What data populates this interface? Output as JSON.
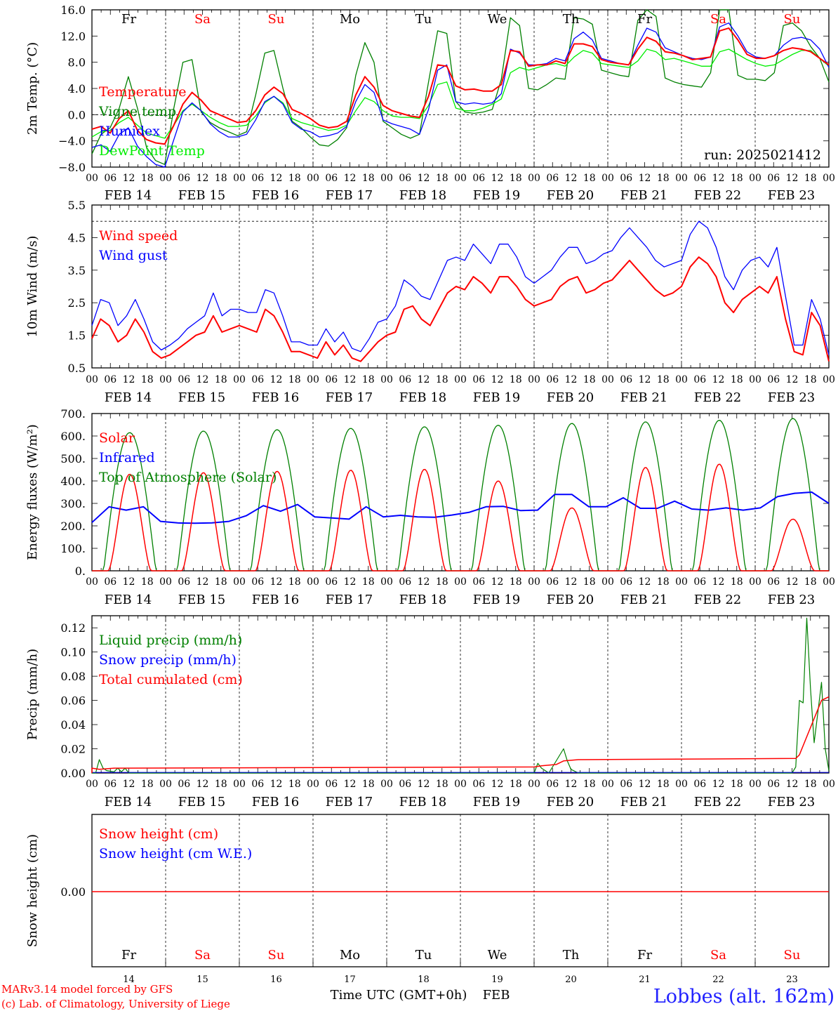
{
  "chart_data": [
    {
      "type": "line",
      "ylabel": "2m Temp. (°C)",
      "ylim": [
        -8,
        16
      ],
      "yticks": [
        "16.0",
        "12.0",
        "8.0",
        "4.0",
        "0.0",
        "−4.0",
        "−8.0"
      ],
      "ytick_values": [
        16,
        12,
        8,
        4,
        0,
        -4,
        -8
      ],
      "ref_lines": [
        0
      ],
      "annotation": "run: 2025021412",
      "series": [
        {
          "name": "Temperature",
          "color": "#ff0000",
          "values": [
            -2.2,
            -1.8,
            -2.8,
            -0.6,
            0.6,
            -2.4,
            -3.8,
            -4.3,
            -4.5,
            -1.6,
            1.6,
            3.4,
            2.2,
            0.6,
            0.0,
            -0.6,
            -1.2,
            -1.0,
            0.6,
            3.0,
            4.2,
            3.2,
            0.8,
            0.2,
            -0.6,
            -1.6,
            -2.0,
            -1.8,
            -1.0,
            3.0,
            5.8,
            4.2,
            1.4,
            0.6,
            0.2,
            -0.2,
            -0.4,
            2.8,
            7.6,
            7.4,
            4.4,
            3.8,
            3.9,
            3.6,
            3.6,
            4.6,
            9.8,
            9.6,
            7.4,
            7.6,
            7.6,
            8.2,
            7.8,
            10.8,
            10.8,
            10.4,
            8.4,
            8.0,
            7.8,
            7.6,
            10.0,
            11.8,
            11.2,
            9.6,
            9.4,
            9.0,
            8.4,
            8.6,
            8.8,
            12.8,
            13.2,
            11.4,
            9.2,
            8.6,
            8.6,
            9.0,
            9.8,
            10.2,
            10.0,
            9.6,
            8.6,
            7.6
          ]
        },
        {
          "name": "Vigne temp",
          "color": "#008000",
          "values": [
            -6.0,
            -3.0,
            -2.0,
            1.0,
            5.8,
            1.0,
            -5.0,
            -7.0,
            -7.6,
            1.0,
            8.0,
            8.4,
            0.4,
            -1.2,
            -2.0,
            -2.6,
            -3.2,
            -2.6,
            3.0,
            9.4,
            9.8,
            4.0,
            -1.0,
            -2.0,
            -3.4,
            -4.6,
            -4.8,
            -3.8,
            -2.0,
            6.0,
            11.0,
            8.0,
            -1.0,
            -2.0,
            -3.0,
            -3.6,
            -3.0,
            5.0,
            12.8,
            12.4,
            2.0,
            0.4,
            0.2,
            0.4,
            0.8,
            5.4,
            14.8,
            13.6,
            4.0,
            3.8,
            4.6,
            5.6,
            5.4,
            14.8,
            14.6,
            13.8,
            6.8,
            6.4,
            6.0,
            5.8,
            14.4,
            16.0,
            15.0,
            5.6,
            5.0,
            4.6,
            4.4,
            4.2,
            6.4,
            17.0,
            16.8,
            6.0,
            5.4,
            5.4,
            5.2,
            6.4,
            13.6,
            14.0,
            12.8,
            10.4,
            8.6,
            5.0
          ]
        },
        {
          "name": "Humidex",
          "color": "#0000ff",
          "values": [
            -5.0,
            -4.6,
            -5.6,
            -3.0,
            -2.0,
            -4.8,
            -6.4,
            -7.6,
            -8.0,
            -3.8,
            0.4,
            1.8,
            0.6,
            -1.4,
            -2.6,
            -3.4,
            -3.4,
            -3.0,
            -0.8,
            2.0,
            2.8,
            1.6,
            -1.2,
            -2.2,
            -2.6,
            -3.4,
            -3.2,
            -2.8,
            -1.8,
            2.0,
            4.6,
            3.4,
            -0.8,
            -1.4,
            -1.8,
            -2.2,
            -3.0,
            0.8,
            6.8,
            7.6,
            2.0,
            1.6,
            1.8,
            1.6,
            1.8,
            3.2,
            10.0,
            9.4,
            7.6,
            7.6,
            7.8,
            8.6,
            8.2,
            11.6,
            12.6,
            11.4,
            8.6,
            8.2,
            7.8,
            7.6,
            10.6,
            13.2,
            12.6,
            10.2,
            9.6,
            9.0,
            8.6,
            8.4,
            8.8,
            13.4,
            14.0,
            12.0,
            9.6,
            8.8,
            8.6,
            9.0,
            10.6,
            11.6,
            11.8,
            11.4,
            10.0,
            7.2
          ]
        },
        {
          "name": "DewPoint Temp",
          "color": "#00ee00",
          "values": [
            -3.4,
            -2.6,
            -2.4,
            -1.2,
            -0.4,
            -1.6,
            -2.8,
            -3.2,
            -3.6,
            -1.6,
            0.6,
            1.6,
            0.6,
            -0.4,
            -1.2,
            -1.8,
            -1.8,
            -1.6,
            -0.2,
            1.8,
            2.8,
            1.8,
            -0.6,
            -1.2,
            -1.6,
            -2.0,
            -2.4,
            -2.2,
            -1.6,
            0.6,
            2.6,
            2.0,
            0.6,
            -0.2,
            -0.4,
            -0.4,
            -0.6,
            1.4,
            4.6,
            5.0,
            1.0,
            0.6,
            0.6,
            1.0,
            1.6,
            2.4,
            6.4,
            7.2,
            6.8,
            7.2,
            7.6,
            7.8,
            7.4,
            8.8,
            9.8,
            9.4,
            7.8,
            7.6,
            7.4,
            7.2,
            8.2,
            10.0,
            9.6,
            8.4,
            8.6,
            8.2,
            7.8,
            7.4,
            7.4,
            9.6,
            10.0,
            9.2,
            8.4,
            7.8,
            7.4,
            7.6,
            8.4,
            9.2,
            9.8,
            9.8,
            8.6,
            7.4
          ]
        }
      ]
    },
    {
      "type": "line",
      "ylabel": "10m Wind (m/s)",
      "ylim": [
        0.5,
        5.5
      ],
      "yticks": [
        "5.5",
        "4.5",
        "3.5",
        "2.5",
        "1.5",
        "0.5"
      ],
      "ytick_values": [
        5.5,
        4.5,
        3.5,
        2.5,
        1.5,
        0.5
      ],
      "ref_lines": [
        5.0
      ],
      "series": [
        {
          "name": "Wind speed",
          "color": "#ff0000",
          "values": [
            1.4,
            2.0,
            1.8,
            1.3,
            1.5,
            2.0,
            1.6,
            1.0,
            0.8,
            0.9,
            1.1,
            1.3,
            1.5,
            1.6,
            2.1,
            1.6,
            1.7,
            1.8,
            1.7,
            1.6,
            2.3,
            2.1,
            1.6,
            1.0,
            1.0,
            0.9,
            0.8,
            1.3,
            0.9,
            1.2,
            0.8,
            0.7,
            1.0,
            1.3,
            1.5,
            1.6,
            2.3,
            2.4,
            2.0,
            1.8,
            2.3,
            2.8,
            3.0,
            2.9,
            3.3,
            3.1,
            2.8,
            3.3,
            3.3,
            3.0,
            2.6,
            2.4,
            2.5,
            2.6,
            3.0,
            3.2,
            3.3,
            2.8,
            2.9,
            3.1,
            3.2,
            3.5,
            3.8,
            3.5,
            3.2,
            2.9,
            2.7,
            2.8,
            3.0,
            3.6,
            3.9,
            3.7,
            3.3,
            2.5,
            2.2,
            2.6,
            2.8,
            3.0,
            2.8,
            3.3,
            2.0,
            1.0,
            0.9,
            2.2,
            1.8,
            0.7
          ]
        },
        {
          "name": "Wind gust",
          "color": "#0000ff",
          "values": [
            1.8,
            2.6,
            2.5,
            1.8,
            2.1,
            2.6,
            2.0,
            1.3,
            1.05,
            1.2,
            1.4,
            1.7,
            1.9,
            2.1,
            2.8,
            2.1,
            2.3,
            2.3,
            2.2,
            2.2,
            2.9,
            2.8,
            2.1,
            1.3,
            1.3,
            1.2,
            1.2,
            1.7,
            1.3,
            1.6,
            1.1,
            1.0,
            1.4,
            1.9,
            2.0,
            2.4,
            3.2,
            3.0,
            2.7,
            2.6,
            3.2,
            3.8,
            3.9,
            3.8,
            4.3,
            4.0,
            3.7,
            4.3,
            4.3,
            3.9,
            3.3,
            3.1,
            3.3,
            3.5,
            3.9,
            4.2,
            4.2,
            3.7,
            3.8,
            4.0,
            4.1,
            4.5,
            4.8,
            4.5,
            4.2,
            3.8,
            3.6,
            3.7,
            3.8,
            4.6,
            5.0,
            4.8,
            4.2,
            3.3,
            2.9,
            3.5,
            3.8,
            3.9,
            3.6,
            4.2,
            2.7,
            1.2,
            1.2,
            2.6,
            2.0,
            0.9
          ]
        }
      ]
    },
    {
      "type": "line",
      "ylabel": "Energy fluxes (W/m²)",
      "ylim": [
        0,
        700
      ],
      "yticks": [
        "700.",
        "600.",
        "500.",
        "400.",
        "300.",
        "200.",
        "100.",
        "0."
      ],
      "ytick_values": [
        700,
        600,
        500,
        400,
        300,
        200,
        100,
        0
      ],
      "series": [
        {
          "name": "Solar",
          "color": "#ff0000",
          "peaks": [
            430,
            437,
            443,
            448,
            452,
            400,
            280,
            460,
            475,
            230
          ]
        },
        {
          "name": "Infrared",
          "color": "#0000ff",
          "values": [
            215,
            285,
            270,
            285,
            220,
            213,
            212,
            213,
            220,
            245,
            290,
            265,
            295,
            240,
            235,
            230,
            285,
            240,
            247,
            240,
            238,
            248,
            260,
            285,
            287,
            268,
            270,
            340,
            340,
            285,
            285,
            325,
            278,
            278,
            310,
            275,
            270,
            280,
            270,
            280,
            330,
            345,
            350,
            300
          ]
        },
        {
          "name": "Top of Atmosphere (Solar)",
          "color": "#008000",
          "peaks": [
            615,
            622,
            628,
            634,
            641,
            648,
            656,
            663,
            670,
            678
          ]
        }
      ]
    },
    {
      "type": "line",
      "ylabel": "Precip (mm/h)",
      "ylim": [
        0,
        0.13
      ],
      "yticks": [
        "0.12",
        "0.10",
        "0.08",
        "0.06",
        "0.04",
        "0.02",
        "0.00"
      ],
      "ytick_values": [
        0.12,
        0.1,
        0.08,
        0.06,
        0.04,
        0.02,
        0.0
      ],
      "series": [
        {
          "name": "Liquid precip (mm/h)",
          "color": "#008000"
        },
        {
          "name": "Snow precip (mm/h)",
          "color": "#0000ff"
        },
        {
          "name": "Total cumulated (cm)",
          "color": "#ff0000"
        }
      ]
    },
    {
      "type": "line",
      "ylabel": "Snow height (cm)",
      "yticks": [
        "0.00"
      ],
      "series": [
        {
          "name": "Snow height (cm)",
          "color": "#ff0000"
        },
        {
          "name": "Snow height (cm W.E.)",
          "color": "#0000ff"
        }
      ]
    }
  ],
  "x_axis": {
    "hour_ticks": [
      "00",
      "06",
      "12",
      "18"
    ],
    "last_tick": "00",
    "dates": [
      "FEB 14",
      "FEB 15",
      "FEB 16",
      "FEB 17",
      "FEB 18",
      "FEB 19",
      "FEB 20",
      "FEB 21",
      "FEB 22",
      "FEB 23"
    ],
    "days": [
      {
        "label": "Fr",
        "color": "#000000"
      },
      {
        "label": "Sa",
        "color": "#ff0000"
      },
      {
        "label": "Su",
        "color": "#ff0000"
      },
      {
        "label": "Mo",
        "color": "#000000"
      },
      {
        "label": "Tu",
        "color": "#000000"
      },
      {
        "label": "We",
        "color": "#000000"
      },
      {
        "label": "Th",
        "color": "#000000"
      },
      {
        "label": "Fr",
        "color": "#000000"
      },
      {
        "label": "Sa",
        "color": "#ff0000"
      },
      {
        "label": "Su",
        "color": "#ff0000"
      }
    ],
    "day_numbers": [
      "14",
      "15",
      "16",
      "17",
      "18",
      "19",
      "20",
      "21",
      "22",
      "23"
    ],
    "title": "Time UTC (GMT+0h)",
    "month": "FEB"
  },
  "footer": {
    "credit_line1": "MARv3.14 model forced by GFS",
    "credit_line2": "(c) Lab. of Climatology, University of Liege",
    "station": "Lobbes (alt. 162m)"
  }
}
